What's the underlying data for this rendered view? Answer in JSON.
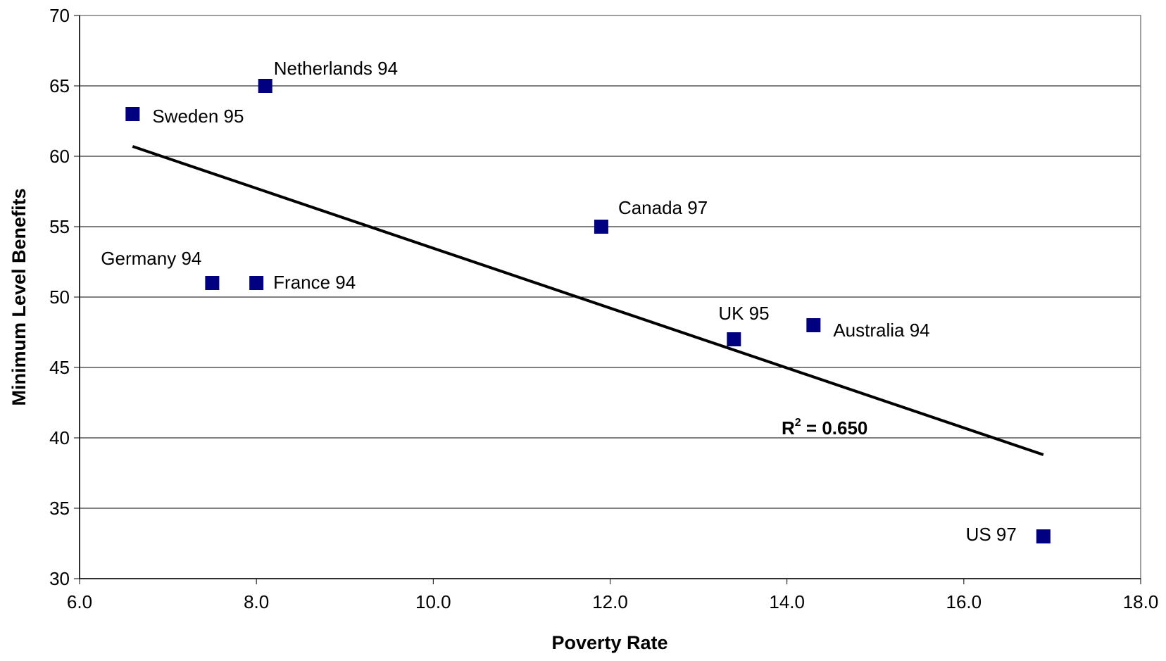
{
  "chart_data": {
    "type": "scatter",
    "xlabel": "Poverty Rate",
    "ylabel": "Minimum Level Benefits",
    "xlim": [
      6.0,
      18.0
    ],
    "ylim": [
      30,
      70
    ],
    "x_ticks": [
      "6.0",
      "8.0",
      "10.0",
      "12.0",
      "14.0",
      "16.0",
      "18.0"
    ],
    "y_ticks": [
      "30",
      "35",
      "40",
      "45",
      "50",
      "55",
      "60",
      "65",
      "70"
    ],
    "grid": "horizontal",
    "marker": "square",
    "marker_color": "#000080",
    "points": [
      {
        "label": "Sweden 95",
        "x": 6.6,
        "y": 63
      },
      {
        "label": "Netherlands 94",
        "x": 8.1,
        "y": 65
      },
      {
        "label": "Germany 94",
        "x": 7.5,
        "y": 51
      },
      {
        "label": "France 94",
        "x": 8.0,
        "y": 51
      },
      {
        "label": "Canada 97",
        "x": 11.9,
        "y": 55
      },
      {
        "label": "UK 95",
        "x": 13.4,
        "y": 47
      },
      {
        "label": "Australia 94",
        "x": 14.3,
        "y": 48
      },
      {
        "label": "US 97",
        "x": 16.9,
        "y": 33
      }
    ],
    "trendline": {
      "type": "linear",
      "x": [
        6.6,
        16.9
      ],
      "y": [
        60.7,
        38.8
      ],
      "r2_label": "R",
      "r2_superscript": "2",
      "r2_value": " = 0.650"
    }
  }
}
